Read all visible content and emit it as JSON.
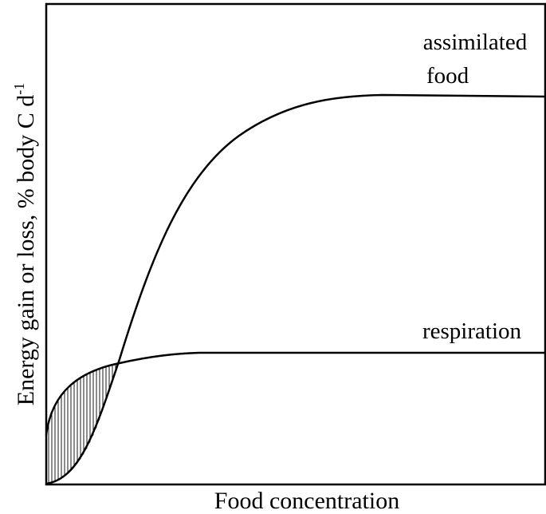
{
  "curves": {
    "assimilated": [
      "assimilated",
      "food"
    ],
    "respiration": "respiration"
  },
  "axes": {
    "y_label": "Energy gain or loss, % body C d",
    "y_label_sup": "-1",
    "x_label": "Food concentration"
  }
}
